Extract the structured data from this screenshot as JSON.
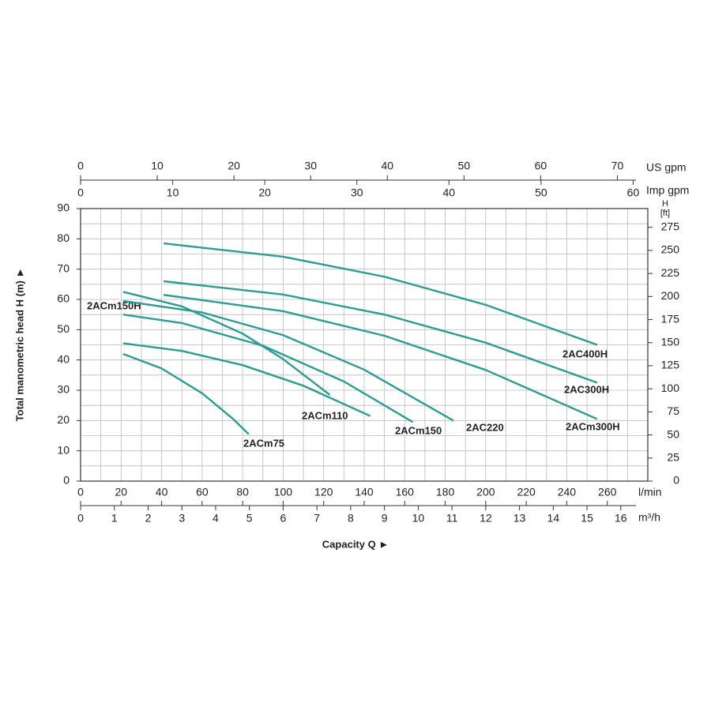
{
  "chart_data": {
    "type": "line",
    "xlabel": "Capacity Q ►",
    "ylabel": "Total manometric head H (m) ►",
    "x_unit": "l/min",
    "xlim": [
      0,
      280
    ],
    "xticks": [
      0,
      20,
      40,
      60,
      80,
      100,
      120,
      140,
      160,
      180,
      200,
      220,
      240,
      260
    ],
    "xgrid": [
      0,
      10,
      20,
      30,
      40,
      50,
      60,
      70,
      80,
      90,
      100,
      110,
      120,
      130,
      140,
      150,
      160,
      170,
      180,
      190,
      200,
      210,
      220,
      230,
      240,
      250,
      260,
      270,
      280
    ],
    "ylim": [
      0,
      90
    ],
    "yticks": [
      0,
      10,
      20,
      30,
      40,
      50,
      60,
      70,
      80,
      90
    ],
    "ygrid": [
      0,
      5,
      10,
      15,
      20,
      25,
      30,
      35,
      40,
      45,
      50,
      55,
      60,
      65,
      70,
      75,
      80,
      85,
      90
    ],
    "grid": true,
    "m3h_axis": {
      "unit": "m³/h",
      "lim": [
        0,
        16.8
      ],
      "ticks": [
        0,
        1,
        2,
        3,
        4,
        5,
        6,
        7,
        8,
        9,
        10,
        11,
        12,
        13,
        14,
        15,
        16
      ]
    },
    "usgpm_axis": {
      "unit": "US gpm",
      "lim": [
        0,
        73.97
      ],
      "ticks": [
        0,
        10,
        20,
        30,
        40,
        50,
        60,
        70
      ]
    },
    "impgpm_axis": {
      "unit": "Imp gpm",
      "lim": [
        0,
        61.59
      ],
      "ticks": [
        0,
        10,
        20,
        30,
        40,
        50,
        60
      ]
    },
    "y2_unit": [
      "H",
      "[ft]"
    ],
    "y2lim": [
      0,
      295.3
    ],
    "y2ticks": [
      0,
      25,
      50,
      75,
      100,
      125,
      150,
      175,
      200,
      225,
      250,
      275
    ],
    "series": [
      {
        "name": "2ACm75",
        "color": "#2a9d95",
        "x": [
          21,
          40,
          60,
          75,
          83
        ],
        "values": [
          42,
          37.2,
          29,
          20.7,
          15.5
        ]
      },
      {
        "name": "2ACm110",
        "color": "#2a9d95",
        "x": [
          21,
          50,
          80,
          110,
          143
        ],
        "values": [
          45.5,
          43,
          38.3,
          31.5,
          21.5
        ]
      },
      {
        "name": "2ACm150H",
        "color": "#2a9d95",
        "x": [
          21,
          50,
          80,
          100,
          123
        ],
        "values": [
          62.5,
          57.7,
          48.7,
          40.3,
          28.5
        ]
      },
      {
        "name": "2ACm150",
        "color": "#2a9d95",
        "x": [
          21,
          50,
          90,
          130,
          164
        ],
        "values": [
          55,
          52.2,
          44.7,
          32.9,
          19.5
        ]
      },
      {
        "name": "2AC220",
        "color": "#2a9d95",
        "x": [
          21,
          60,
          100,
          140,
          184
        ],
        "values": [
          59.5,
          55.7,
          48.2,
          36.8,
          20
        ]
      },
      {
        "name": "2AC400H",
        "color": "#2a9d95",
        "x": [
          41,
          100,
          150,
          200,
          255
        ],
        "values": [
          78.5,
          74.1,
          67.5,
          58.2,
          45
        ]
      },
      {
        "name": "2AC300H",
        "color": "#2a9d95",
        "x": [
          41,
          100,
          150,
          200,
          255
        ],
        "values": [
          66,
          61.6,
          55,
          45.7,
          32.5
        ]
      },
      {
        "name": "2ACm300H",
        "color": "#2a9d95",
        "x": [
          41,
          100,
          150,
          200,
          255
        ],
        "values": [
          61.5,
          56.1,
          48,
          36.7,
          20.5
        ]
      }
    ]
  }
}
